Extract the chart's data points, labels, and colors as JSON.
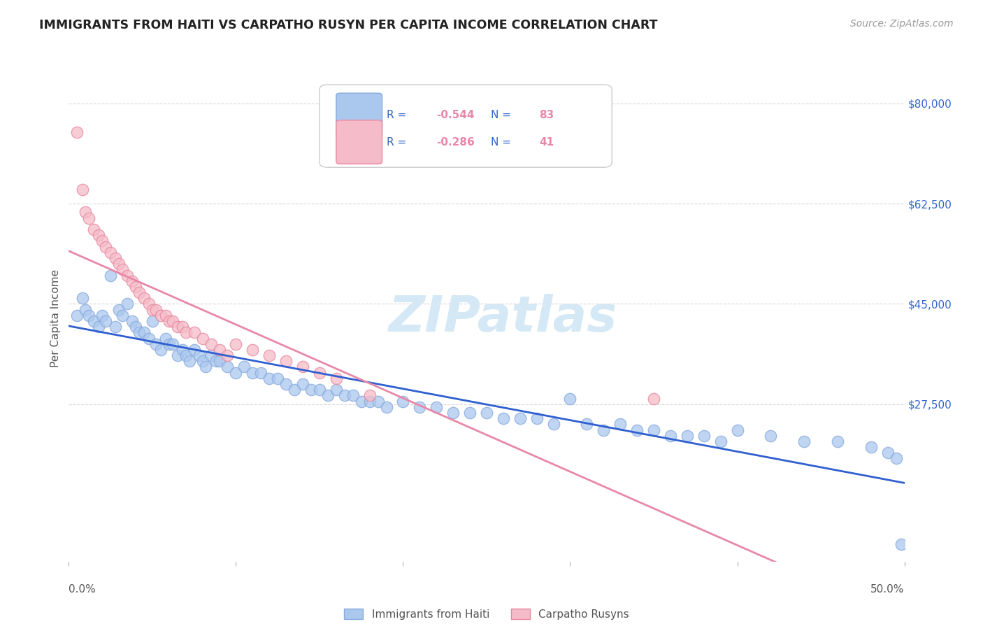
{
  "title": "IMMIGRANTS FROM HAITI VS CARPATHO RUSYN PER CAPITA INCOME CORRELATION CHART",
  "source": "Source: ZipAtlas.com",
  "ylabel": "Per Capita Income",
  "yticks": [
    0,
    27500,
    45000,
    62500,
    80000
  ],
  "ytick_labels": [
    "",
    "$27,500",
    "$45,000",
    "$62,500",
    "$80,000"
  ],
  "ymax": 85000,
  "ymin": 0,
  "xmin": 0.0,
  "xmax": 0.5,
  "background_color": "#ffffff",
  "grid_color": "#d8d8d8",
  "haiti_color": "#aac8ee",
  "haiti_edge_color": "#88aadd",
  "rusyn_color": "#f5bbc8",
  "rusyn_edge_color": "#e888a0",
  "haiti_R": -0.544,
  "haiti_N": 83,
  "rusyn_R": -0.286,
  "rusyn_N": 41,
  "haiti_line_color": "#3060d0",
  "rusyn_line_color": "#e888a8",
  "legend_text_color": "#3366cc",
  "legend_value_color": "#3366cc",
  "watermark_color": "#d5e8f5",
  "haiti_x": [
    0.005,
    0.008,
    0.01,
    0.012,
    0.015,
    0.018,
    0.02,
    0.022,
    0.025,
    0.028,
    0.03,
    0.032,
    0.035,
    0.038,
    0.04,
    0.042,
    0.045,
    0.048,
    0.05,
    0.052,
    0.055,
    0.058,
    0.06,
    0.062,
    0.065,
    0.068,
    0.07,
    0.072,
    0.075,
    0.078,
    0.08,
    0.082,
    0.085,
    0.088,
    0.09,
    0.095,
    0.1,
    0.105,
    0.11,
    0.115,
    0.12,
    0.125,
    0.13,
    0.135,
    0.14,
    0.145,
    0.15,
    0.155,
    0.16,
    0.165,
    0.17,
    0.175,
    0.18,
    0.185,
    0.19,
    0.2,
    0.21,
    0.22,
    0.23,
    0.24,
    0.25,
    0.26,
    0.27,
    0.28,
    0.29,
    0.3,
    0.31,
    0.32,
    0.33,
    0.34,
    0.35,
    0.36,
    0.37,
    0.38,
    0.39,
    0.4,
    0.42,
    0.44,
    0.46,
    0.48,
    0.49,
    0.495,
    0.498
  ],
  "haiti_y": [
    43000,
    46000,
    44000,
    43000,
    42000,
    41000,
    43000,
    42000,
    50000,
    41000,
    44000,
    43000,
    45000,
    42000,
    41000,
    40000,
    40000,
    39000,
    42000,
    38000,
    37000,
    39000,
    38000,
    38000,
    36000,
    37000,
    36000,
    35000,
    37000,
    36000,
    35000,
    34000,
    36000,
    35000,
    35000,
    34000,
    33000,
    34000,
    33000,
    33000,
    32000,
    32000,
    31000,
    30000,
    31000,
    30000,
    30000,
    29000,
    30000,
    29000,
    29000,
    28000,
    28000,
    28000,
    27000,
    28000,
    27000,
    27000,
    26000,
    26000,
    26000,
    25000,
    25000,
    25000,
    24000,
    28500,
    24000,
    23000,
    24000,
    23000,
    23000,
    22000,
    22000,
    22000,
    21000,
    23000,
    22000,
    21000,
    21000,
    20000,
    19000,
    18000,
    3000
  ],
  "rusyn_x": [
    0.005,
    0.008,
    0.01,
    0.012,
    0.015,
    0.018,
    0.02,
    0.022,
    0.025,
    0.028,
    0.03,
    0.032,
    0.035,
    0.038,
    0.04,
    0.042,
    0.045,
    0.048,
    0.05,
    0.052,
    0.055,
    0.058,
    0.06,
    0.062,
    0.065,
    0.068,
    0.07,
    0.075,
    0.08,
    0.085,
    0.09,
    0.095,
    0.1,
    0.11,
    0.12,
    0.13,
    0.14,
    0.15,
    0.16,
    0.18,
    0.35
  ],
  "rusyn_y": [
    75000,
    65000,
    61000,
    60000,
    58000,
    57000,
    56000,
    55000,
    54000,
    53000,
    52000,
    51000,
    50000,
    49000,
    48000,
    47000,
    46000,
    45000,
    44000,
    44000,
    43000,
    43000,
    42000,
    42000,
    41000,
    41000,
    40000,
    40000,
    39000,
    38000,
    37000,
    36000,
    38000,
    37000,
    36000,
    35000,
    34000,
    33000,
    32000,
    29000,
    28500
  ]
}
